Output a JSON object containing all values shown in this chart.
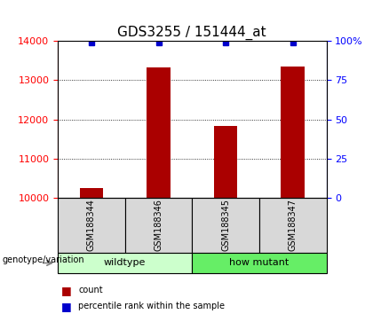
{
  "title": "GDS3255 / 151444_at",
  "samples": [
    "GSM188344",
    "GSM188346",
    "GSM188345",
    "GSM188347"
  ],
  "counts": [
    10240,
    13330,
    11830,
    13350
  ],
  "percentiles": [
    99,
    99,
    99,
    99
  ],
  "ymin": 10000,
  "ymax": 14000,
  "y_ticks": [
    10000,
    11000,
    12000,
    13000,
    14000
  ],
  "y2_ticks": [
    0,
    25,
    50,
    75,
    100
  ],
  "bar_color": "#aa0000",
  "dot_color": "#0000cc",
  "bg_color": "#d8d8d8",
  "wildtype_color": "#ccffcc",
  "mutant_color": "#66ee66",
  "title_fontsize": 11,
  "tick_fontsize": 8
}
